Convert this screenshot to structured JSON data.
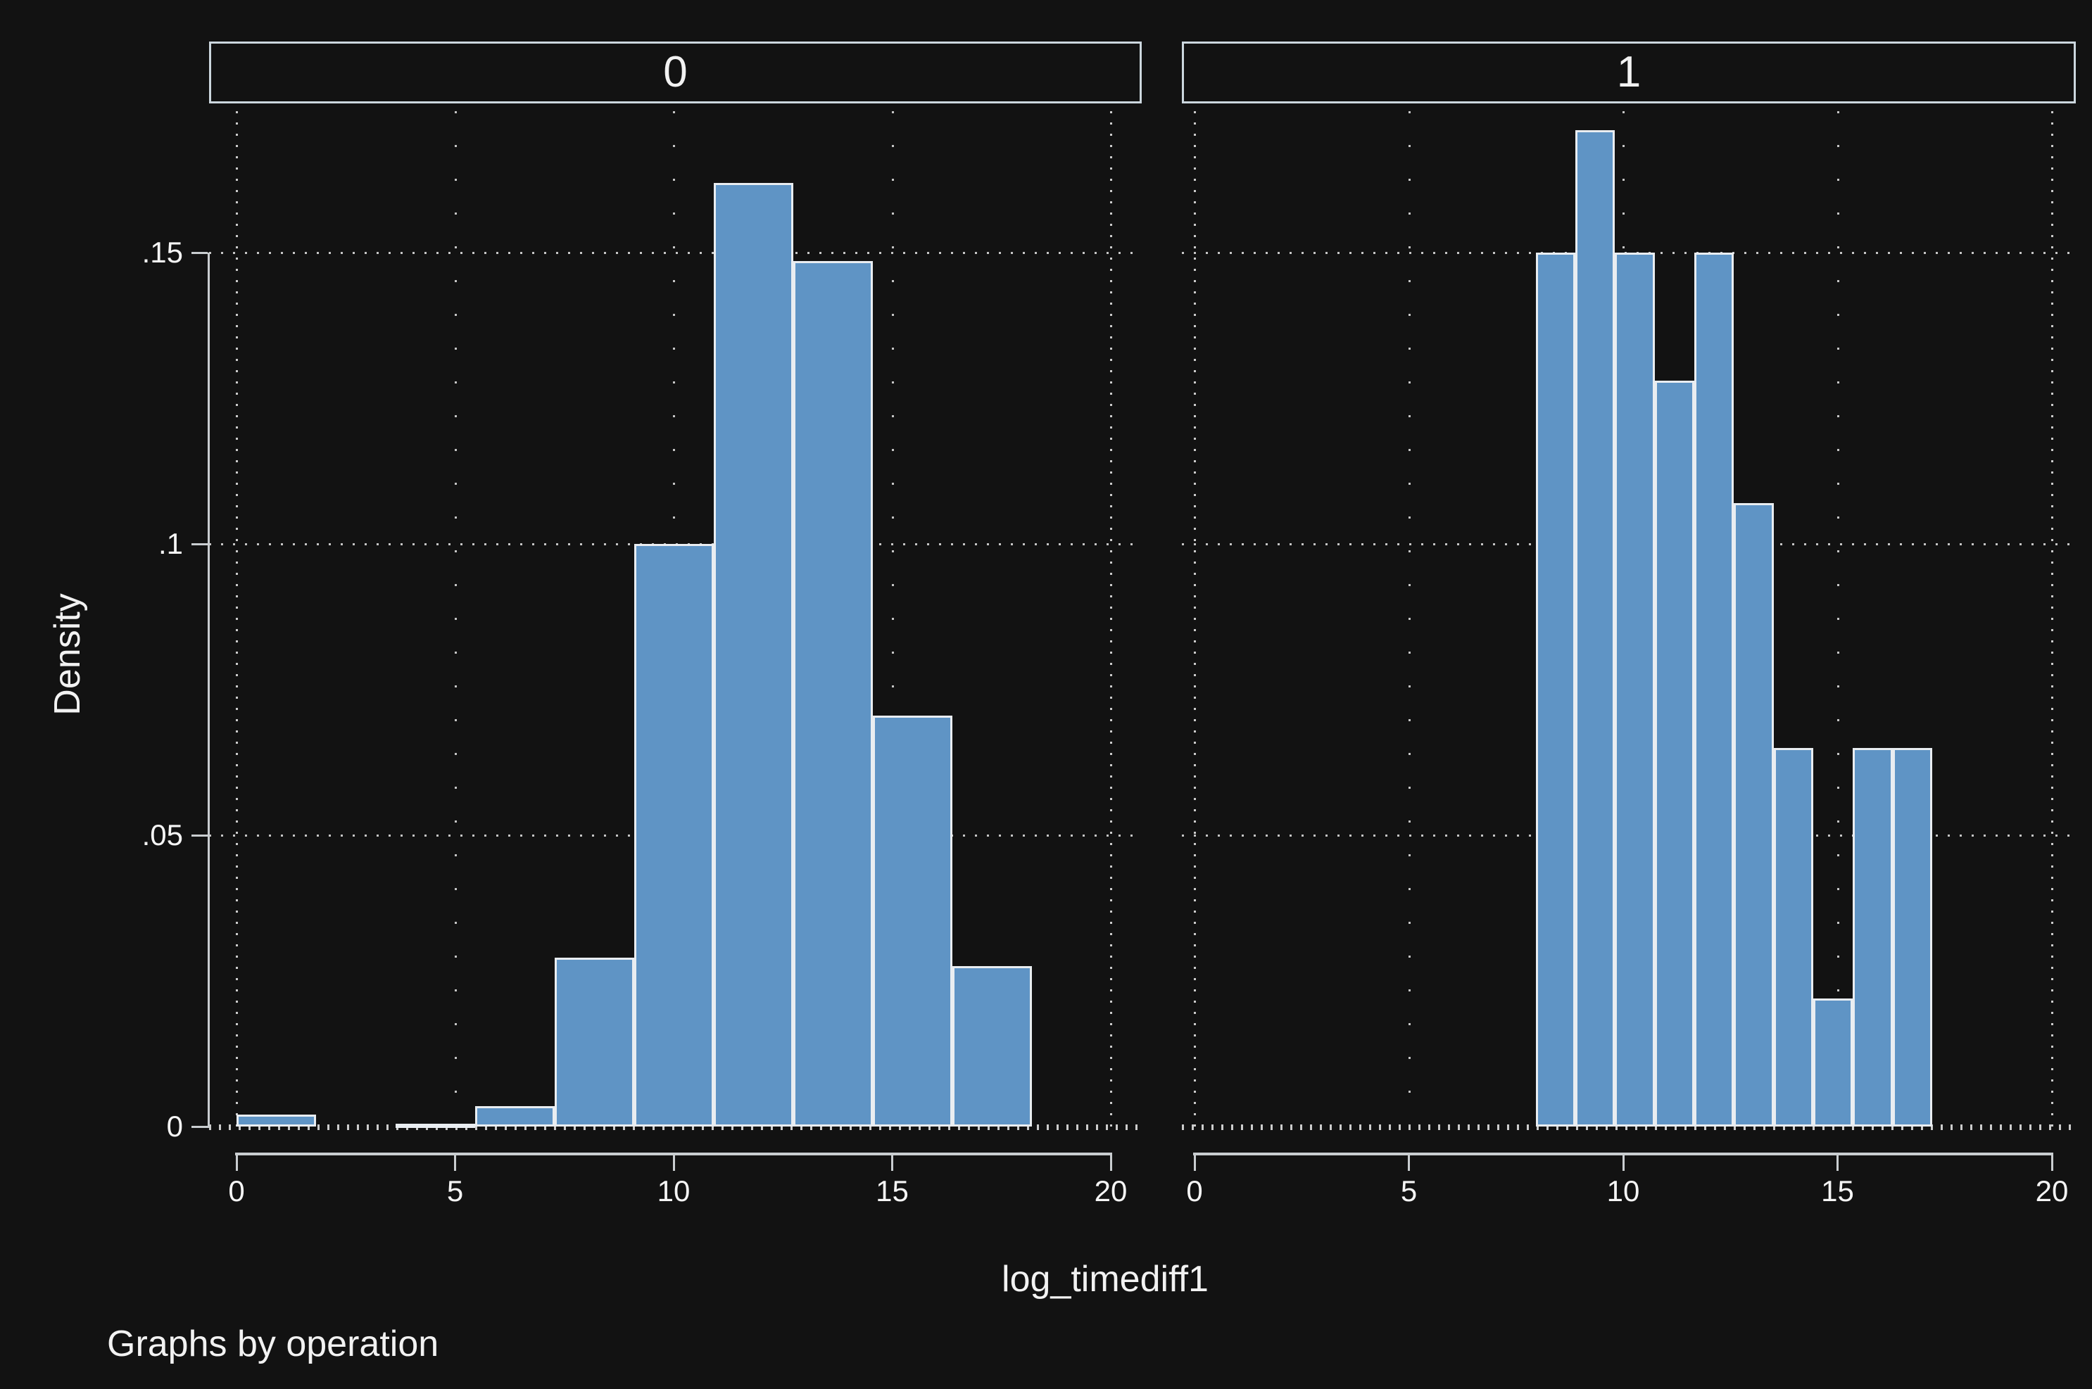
{
  "figure": {
    "ylabel": "Density",
    "xlabel": "log_timediff1",
    "caption": "Graphs by operation"
  },
  "chart_data": [
    {
      "type": "bar",
      "subtype": "histogram",
      "panel_title": "0",
      "facet_variable": "operation",
      "facet_value": "0",
      "xlabel": "log_timediff1",
      "ylabel": "Density",
      "xlim": [
        0,
        20
      ],
      "ylim": [
        0,
        0.1755
      ],
      "xticks": [
        0,
        5,
        10,
        15,
        20
      ],
      "xtick_labels": [
        "0",
        "5",
        "10",
        "15",
        "20"
      ],
      "yticks": [
        0,
        0.05,
        0.1,
        0.15
      ],
      "ytick_labels": [
        "0",
        ".05",
        ".1",
        ".15"
      ],
      "grid": true,
      "bin_start": 0,
      "bin_width": 1.82,
      "densities": [
        0.002,
        0,
        0.0005,
        0.0035,
        0.029,
        0.1,
        0.162,
        0.1485,
        0.0705,
        0.0275
      ]
    },
    {
      "type": "bar",
      "subtype": "histogram",
      "panel_title": "1",
      "facet_variable": "operation",
      "facet_value": "1",
      "xlabel": "log_timediff1",
      "ylabel": "Density",
      "xlim": [
        0,
        20
      ],
      "ylim": [
        0,
        0.1755
      ],
      "xticks": [
        0,
        5,
        10,
        15,
        20
      ],
      "xtick_labels": [
        "0",
        "5",
        "10",
        "15",
        "20"
      ],
      "yticks": [
        0,
        0.05,
        0.1,
        0.15
      ],
      "ytick_labels": [
        "0",
        ".05",
        ".1",
        ".15"
      ],
      "grid": true,
      "bin_start": 7.96,
      "bin_width": 0.925,
      "densities": [
        0.15,
        0.171,
        0.15,
        0.128,
        0.15,
        0.107,
        0.065,
        0.022,
        0.065,
        0.065
      ]
    }
  ],
  "colors": {
    "background": "#121212",
    "bar_fill": "#5f94c5",
    "bar_stroke": "#e9edf1",
    "axis": "#c9cdd0",
    "grid": "#c6c6c6",
    "panel_border": "#ccd7de",
    "text": "#f2f2f2"
  }
}
